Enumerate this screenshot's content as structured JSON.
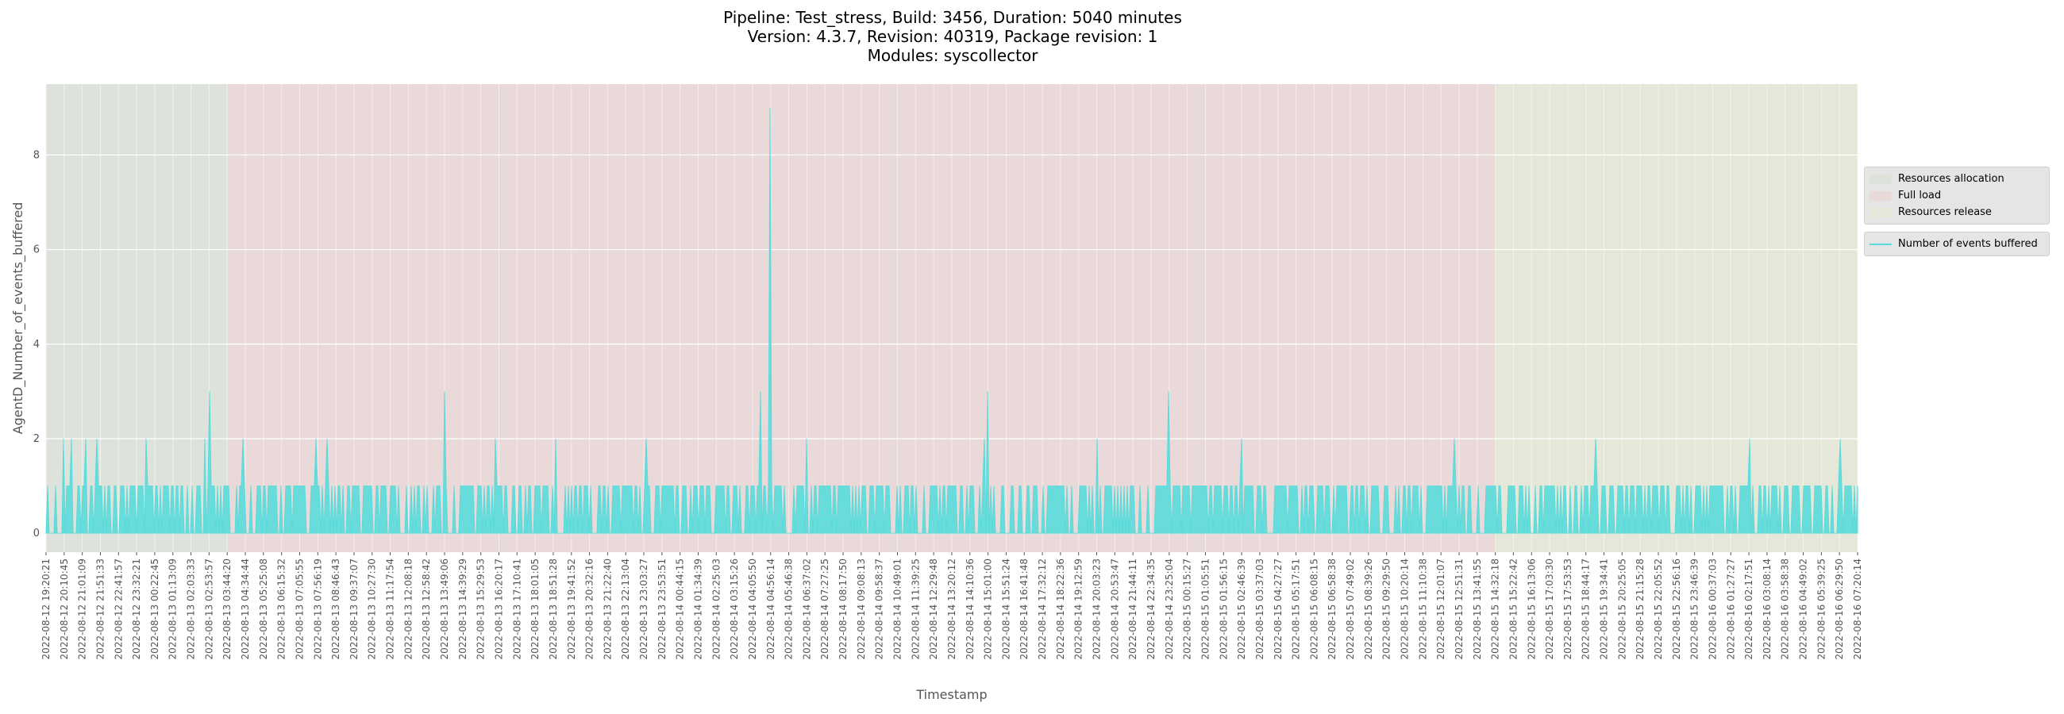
{
  "title": {
    "line1": "Pipeline: Test_stress, Build: 3456, Duration: 5040 minutes",
    "line2": "Version: 4.3.7, Revision: 40319, Package revision: 1",
    "line3": "Modules: syscollector"
  },
  "legend": {
    "phases": [
      {
        "label": "Resources allocation",
        "color": "#b8d9c2"
      },
      {
        "label": "Full load",
        "color": "#f4c6c6"
      },
      {
        "label": "Resources release",
        "color": "#e8ebc4"
      }
    ],
    "series_label": "Number of events buffered",
    "series_color": "#5adada"
  },
  "chart_data": {
    "type": "area",
    "xlabel": "Timestamp",
    "ylabel": "AgentD_Number_of_events_buffered",
    "ylim": [
      -0.4,
      9.5
    ],
    "yticks": [
      0,
      2,
      4,
      6,
      8
    ],
    "grid": true,
    "legend_position": "right",
    "background_color": "#e5e5e5",
    "phase_boundaries": {
      "allocation_end": "2022-08-13 03:44:20",
      "load_end": "2022-08-15 14:32:18"
    },
    "series": [
      {
        "name": "Number of events buffered",
        "baseline": [
          0,
          1
        ],
        "peaks": [
          {
            "x": "2022-08-12 20:10:45",
            "y": 2
          },
          {
            "x": "2022-08-12 20:30:00",
            "y": 2
          },
          {
            "x": "2022-08-12 21:10:00",
            "y": 2
          },
          {
            "x": "2022-08-12 21:40:00",
            "y": 2
          },
          {
            "x": "2022-08-13 00:00:00",
            "y": 2
          },
          {
            "x": "2022-08-13 02:40:00",
            "y": 2
          },
          {
            "x": "2022-08-13 02:53:57",
            "y": 3
          },
          {
            "x": "2022-08-13 04:30:00",
            "y": 2
          },
          {
            "x": "2022-08-13 07:50:00",
            "y": 2
          },
          {
            "x": "2022-08-13 08:20:00",
            "y": 2
          },
          {
            "x": "2022-08-13 13:49:06",
            "y": 3
          },
          {
            "x": "2022-08-13 16:10:00",
            "y": 2
          },
          {
            "x": "2022-08-13 19:00:00",
            "y": 2
          },
          {
            "x": "2022-08-13 23:10:00",
            "y": 2
          },
          {
            "x": "2022-08-14 04:30:00",
            "y": 3
          },
          {
            "x": "2022-08-14 04:56:14",
            "y": 9
          },
          {
            "x": "2022-08-14 06:37:02",
            "y": 2
          },
          {
            "x": "2022-08-14 14:50:00",
            "y": 2
          },
          {
            "x": "2022-08-14 15:01:00",
            "y": 3
          },
          {
            "x": "2022-08-14 20:03:23",
            "y": 2
          },
          {
            "x": "2022-08-14 23:25:04",
            "y": 3
          },
          {
            "x": "2022-08-15 02:46:39",
            "y": 2
          },
          {
            "x": "2022-08-15 12:40:00",
            "y": 2
          },
          {
            "x": "2022-08-15 19:10:00",
            "y": 2
          },
          {
            "x": "2022-08-16 02:17:51",
            "y": 2
          },
          {
            "x": "2022-08-16 06:29:50",
            "y": 2
          }
        ]
      }
    ],
    "categories": [
      "2022-08-12 19:20:21",
      "2022-08-12 20:10:45",
      "2022-08-12 21:01:09",
      "2022-08-12 21:51:33",
      "2022-08-12 22:41:57",
      "2022-08-12 23:32:21",
      "2022-08-13 00:22:45",
      "2022-08-13 01:13:09",
      "2022-08-13 02:03:33",
      "2022-08-13 02:53:57",
      "2022-08-13 03:44:20",
      "2022-08-13 04:34:44",
      "2022-08-13 05:25:08",
      "2022-08-13 06:15:32",
      "2022-08-13 07:05:55",
      "2022-08-13 07:56:19",
      "2022-08-13 08:46:43",
      "2022-08-13 09:37:07",
      "2022-08-13 10:27:30",
      "2022-08-13 11:17:54",
      "2022-08-13 12:08:18",
      "2022-08-13 12:58:42",
      "2022-08-13 13:49:06",
      "2022-08-13 14:39:29",
      "2022-08-13 15:29:53",
      "2022-08-13 16:20:17",
      "2022-08-13 17:10:41",
      "2022-08-13 18:01:05",
      "2022-08-13 18:51:28",
      "2022-08-13 19:41:52",
      "2022-08-13 20:32:16",
      "2022-08-13 21:22:40",
      "2022-08-13 22:13:04",
      "2022-08-13 23:03:27",
      "2022-08-13 23:53:51",
      "2022-08-14 00:44:15",
      "2022-08-14 01:34:39",
      "2022-08-14 02:25:03",
      "2022-08-14 03:15:26",
      "2022-08-14 04:05:50",
      "2022-08-14 04:56:14",
      "2022-08-14 05:46:38",
      "2022-08-14 06:37:02",
      "2022-08-14 07:27:25",
      "2022-08-14 08:17:50",
      "2022-08-14 09:08:13",
      "2022-08-14 09:58:37",
      "2022-08-14 10:49:01",
      "2022-08-14 11:39:25",
      "2022-08-14 12:29:48",
      "2022-08-14 13:20:12",
      "2022-08-14 14:10:36",
      "2022-08-14 15:01:00",
      "2022-08-14 15:51:24",
      "2022-08-14 16:41:48",
      "2022-08-14 17:32:12",
      "2022-08-14 18:22:36",
      "2022-08-14 19:12:59",
      "2022-08-14 20:03:23",
      "2022-08-14 20:53:47",
      "2022-08-14 21:44:11",
      "2022-08-14 22:34:35",
      "2022-08-14 23:25:04",
      "2022-08-15 00:15:27",
      "2022-08-15 01:05:51",
      "2022-08-15 01:56:15",
      "2022-08-15 02:46:39",
      "2022-08-15 03:37:03",
      "2022-08-15 04:27:27",
      "2022-08-15 05:17:51",
      "2022-08-15 06:08:15",
      "2022-08-15 06:58:38",
      "2022-08-15 07:49:02",
      "2022-08-15 08:39:26",
      "2022-08-15 09:29:50",
      "2022-08-15 10:20:14",
      "2022-08-15 11:10:38",
      "2022-08-15 12:01:07",
      "2022-08-15 12:51:31",
      "2022-08-15 13:41:55",
      "2022-08-15 14:32:18",
      "2022-08-15 15:22:42",
      "2022-08-15 16:13:06",
      "2022-08-15 17:03:30",
      "2022-08-15 17:53:53",
      "2022-08-15 18:44:17",
      "2022-08-15 19:34:41",
      "2022-08-15 20:25:05",
      "2022-08-15 21:15:28",
      "2022-08-15 22:05:52",
      "2022-08-15 22:56:16",
      "2022-08-15 23:46:39",
      "2022-08-16 00:37:03",
      "2022-08-16 01:27:27",
      "2022-08-16 02:17:51",
      "2022-08-16 03:08:14",
      "2022-08-16 03:58:38",
      "2022-08-16 04:49:02",
      "2022-08-16 05:39:25",
      "2022-08-16 06:29:50",
      "2022-08-16 07:20:14"
    ]
  }
}
